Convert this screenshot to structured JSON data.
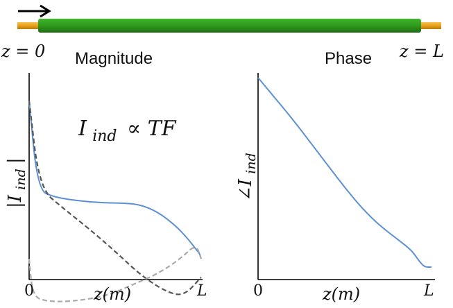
{
  "cable": {
    "label_start": "z = 0",
    "label_end": "z = L",
    "colors": {
      "conductor": "#2f9a1d",
      "ends": "#e8a019",
      "arrow": "#000000"
    }
  },
  "magnitude_panel": {
    "title": "Magnitude",
    "equation_lhs": "I",
    "equation_sub": "ind",
    "equation_rhs": "∝ TF",
    "ylabel_main": "|I",
    "ylabel_sub": "ind",
    "ylabel_close": "|",
    "x_tick_start": "0",
    "x_tick_end": "L",
    "xlabel": "z(m)"
  },
  "phase_panel": {
    "title": "Phase",
    "ylabel_main": "∠I",
    "ylabel_sub": "ind",
    "x_tick_start": "0",
    "x_tick_end": "L",
    "xlabel": "z(m)"
  },
  "chart_data": [
    {
      "type": "line",
      "title": "Magnitude",
      "xlabel": "z(m)",
      "ylabel": "|I_ind|",
      "xlim": [
        0,
        1
      ],
      "ylim": [
        -0.25,
        1
      ],
      "axes": "left-and-bottom only, no ticks except 0 and L",
      "grid": false,
      "series": [
        {
          "style": "solid",
          "color": "#5b8fd6",
          "x": [
            0,
            0.05,
            0.15,
            0.3,
            0.45,
            0.55,
            0.65,
            0.75,
            0.85,
            0.93,
            0.97,
            0.99,
            1.0
          ],
          "y": [
            0.85,
            0.37,
            0.33,
            0.31,
            0.3,
            0.3,
            0.29,
            0.25,
            0.18,
            0.1,
            0.05,
            0.03,
            0.0
          ]
        },
        {
          "style": "dashed",
          "color": "#555555",
          "x": [
            0,
            0.06,
            0.2,
            0.35,
            0.5,
            0.65,
            0.8,
            0.9,
            1.0
          ],
          "y": [
            0.85,
            0.38,
            0.27,
            0.16,
            0.04,
            -0.09,
            -0.18,
            -0.2,
            -0.1
          ]
        },
        {
          "style": "dashed",
          "color": "#aaaaaa",
          "x": [
            0,
            0.02,
            0.1,
            0.25,
            0.45,
            0.6,
            0.75,
            0.88,
            0.97,
            1.0
          ],
          "y": [
            0.0,
            -0.2,
            -0.23,
            -0.23,
            -0.2,
            -0.14,
            -0.08,
            0.0,
            0.08,
            0.0
          ]
        }
      ]
    },
    {
      "type": "line",
      "title": "Phase",
      "xlabel": "z(m)",
      "ylabel": "∠I_ind",
      "xlim": [
        0,
        1
      ],
      "ylim": [
        0,
        1
      ],
      "axes": "left-and-bottom only, no ticks except 0 and L",
      "grid": false,
      "series": [
        {
          "style": "solid",
          "color": "#5b8fd6",
          "x": [
            0,
            0.1,
            0.2,
            0.3,
            0.4,
            0.5,
            0.6,
            0.7,
            0.8,
            0.87,
            0.9,
            0.93,
            0.96,
            1.0
          ],
          "y": [
            1.0,
            0.89,
            0.78,
            0.66,
            0.54,
            0.42,
            0.31,
            0.22,
            0.15,
            0.1,
            0.07,
            0.03,
            0.0,
            0.0
          ]
        }
      ]
    }
  ]
}
